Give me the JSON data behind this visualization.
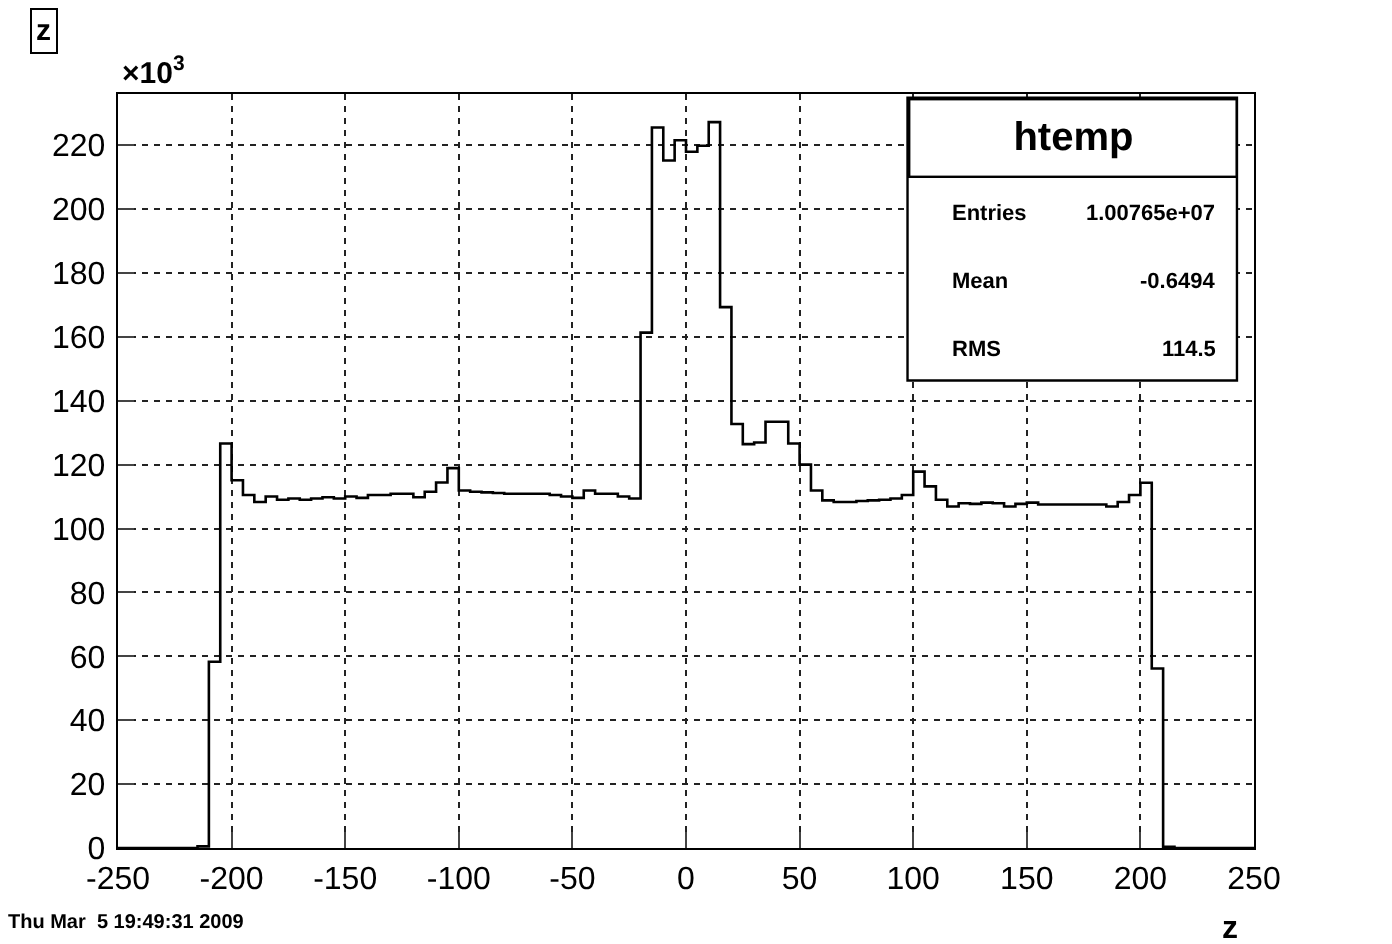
{
  "chart_data": {
    "type": "histogram",
    "title": "z",
    "xlabel": "z",
    "bins": [
      -250,
      -245,
      -240,
      -235,
      -230,
      -225,
      -220,
      -215,
      -210,
      -205,
      -200,
      -195,
      -190,
      -185,
      -180,
      -175,
      -170,
      -165,
      -160,
      -155,
      -150,
      -145,
      -140,
      -135,
      -130,
      -125,
      -120,
      -115,
      -110,
      -105,
      -100,
      -95,
      -90,
      -85,
      -80,
      -75,
      -70,
      -65,
      -60,
      -55,
      -50,
      -45,
      -40,
      -35,
      -30,
      -25,
      -20,
      -15,
      -10,
      -5,
      0,
      5,
      10,
      15,
      20,
      25,
      30,
      35,
      40,
      45,
      50,
      55,
      60,
      65,
      70,
      75,
      80,
      85,
      90,
      95,
      100,
      105,
      110,
      115,
      120,
      125,
      130,
      135,
      140,
      145,
      150,
      155,
      160,
      165,
      170,
      175,
      180,
      185,
      190,
      195,
      200,
      205,
      210,
      215,
      220,
      225,
      230,
      235,
      240,
      245,
      250
    ],
    "values": [
      0,
      0,
      0,
      0,
      0,
      0,
      0,
      0.5,
      58.3,
      126.6,
      115.1,
      110.5,
      108.3,
      110.0,
      109.0,
      109.4,
      109.0,
      109.4,
      109.8,
      109.4,
      110.0,
      109.6,
      110.5,
      110.5,
      110.9,
      110.9,
      109.8,
      111.5,
      114.4,
      118.9,
      111.9,
      111.5,
      111.3,
      111.1,
      110.9,
      110.9,
      110.9,
      110.9,
      110.5,
      110.0,
      109.6,
      111.9,
      110.9,
      110.9,
      110.0,
      109.4,
      161.3,
      225.5,
      215.2,
      221.5,
      217.9,
      219.8,
      227.2,
      169.3,
      132.7,
      126.4,
      126.9,
      133.4,
      133.4,
      126.6,
      120.0,
      111.9,
      108.8,
      108.3,
      108.3,
      108.6,
      108.8,
      109.0,
      109.4,
      110.5,
      117.8,
      113.2,
      109.0,
      106.9,
      107.9,
      107.7,
      108.1,
      107.9,
      106.9,
      107.7,
      108.1,
      107.5,
      107.5,
      107.5,
      107.5,
      107.5,
      107.5,
      106.9,
      108.3,
      110.5,
      114.3,
      56.2,
      0.4,
      0,
      0,
      0,
      0,
      0,
      0,
      0
    ],
    "color": "#000000",
    "xlim": [
      -250,
      250
    ],
    "xticks": [
      -250,
      -200,
      -150,
      -100,
      -50,
      0,
      50,
      100,
      150,
      200,
      250
    ],
    "ylim": [
      0,
      236
    ],
    "yticks": [
      0,
      20,
      40,
      60,
      80,
      100,
      120,
      140,
      160,
      180,
      200,
      220
    ],
    "grid": true,
    "annotations": [
      "×10$^{3}$",
      "htemp",
      "Entries",
      "1.00765e+07",
      "Mean",
      "-0.6494",
      "RMS",
      "114.5",
      "Thu Mar  5 19:49:31 2009"
    ]
  }
}
